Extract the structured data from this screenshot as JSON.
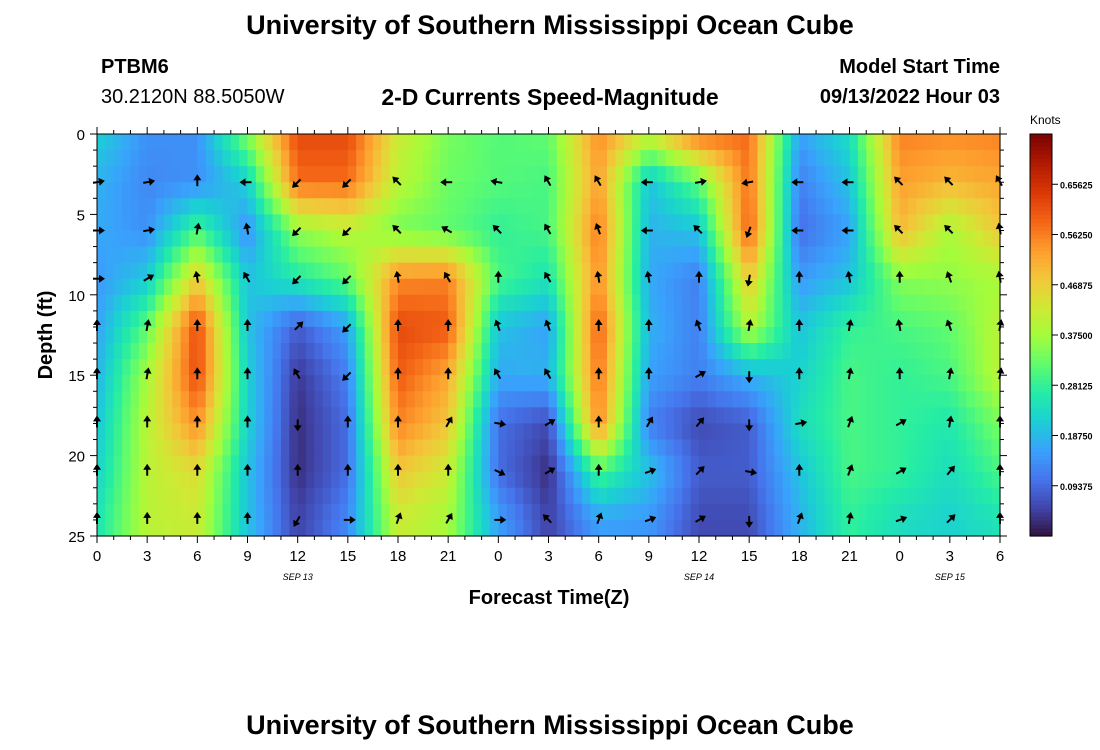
{
  "header": {
    "title": "University of Southern Mississippi Ocean Cube",
    "station_id": "PTBM6",
    "station_coords": "30.2120N  88.5050W",
    "model_start_label": "Model Start Time",
    "model_start_value": "09/13/2022 Hour 03"
  },
  "footer": {
    "title": "University of Southern Mississippi Ocean Cube"
  },
  "chart_data": {
    "type": "heatmap",
    "title": "2-D Currents Speed-Magnitude",
    "xlabel": "Forecast Time(Z)",
    "ylabel": "Depth (ft)",
    "x_range": [
      0,
      54
    ],
    "y_range": [
      0,
      25
    ],
    "y_inverted": true,
    "x_ticks": [
      0,
      3,
      6,
      9,
      12,
      15,
      18,
      21,
      24,
      27,
      30,
      33,
      36,
      39,
      42,
      45,
      48,
      51,
      54
    ],
    "x_tick_labels": [
      "0",
      "3",
      "6",
      "9",
      "12",
      "15",
      "18",
      "21",
      "0",
      "3",
      "6",
      "9",
      "12",
      "15",
      "18",
      "21",
      "0",
      "3",
      "6"
    ],
    "y_ticks": [
      0,
      5,
      10,
      15,
      20,
      25
    ],
    "y_tick_labels": [
      "0",
      "5",
      "10",
      "15",
      "20",
      "25"
    ],
    "date_labels": [
      {
        "x": 12,
        "label": "SEP 13"
      },
      {
        "x": 36,
        "label": "SEP 14"
      },
      {
        "x": 51,
        "label": "SEP 15"
      }
    ],
    "colorbar": {
      "unit": "Knots",
      "min": 0,
      "max": 0.75,
      "ticks": [
        0.09375,
        0.1875,
        0.28125,
        0.375,
        0.46875,
        0.5625,
        0.65625
      ],
      "tick_labels": [
        "0.09375",
        "0.18750",
        "0.28125",
        "0.37500",
        "0.46875",
        "0.56250",
        "0.65625"
      ],
      "colors": [
        "#30123b",
        "#4145ab",
        "#4675ed",
        "#39a2fc",
        "#1bcfd4",
        "#24eca6",
        "#61fc6c",
        "#a4fc3b",
        "#d1e834",
        "#f3c63a",
        "#fe9b2d",
        "#f36315",
        "#d93806",
        "#b11901",
        "#7a0402"
      ]
    },
    "speed_grid": {
      "times": [
        0,
        3,
        6,
        9,
        12,
        15,
        18,
        21,
        24,
        27,
        30,
        33,
        36,
        39,
        42,
        45,
        48,
        51,
        54
      ],
      "depths": [
        0,
        3,
        6,
        9,
        12,
        15,
        18,
        21,
        24
      ],
      "values": [
        [
          0.22,
          0.14,
          0.14,
          0.35,
          0.62,
          0.62,
          0.42,
          0.34,
          0.31,
          0.32,
          0.55,
          0.42,
          0.58,
          0.58,
          0.16,
          0.24,
          0.56,
          0.55,
          0.56
        ],
        [
          0.18,
          0.13,
          0.14,
          0.22,
          0.58,
          0.58,
          0.4,
          0.33,
          0.31,
          0.3,
          0.53,
          0.2,
          0.32,
          0.58,
          0.12,
          0.2,
          0.53,
          0.5,
          0.52
        ],
        [
          0.17,
          0.14,
          0.3,
          0.14,
          0.36,
          0.4,
          0.34,
          0.32,
          0.28,
          0.3,
          0.57,
          0.18,
          0.2,
          0.6,
          0.1,
          0.16,
          0.5,
          0.38,
          0.48
        ],
        [
          0.15,
          0.21,
          0.47,
          0.2,
          0.26,
          0.32,
          0.55,
          0.56,
          0.3,
          0.25,
          0.55,
          0.17,
          0.12,
          0.48,
          0.15,
          0.2,
          0.35,
          0.36,
          0.38
        ],
        [
          0.16,
          0.32,
          0.62,
          0.2,
          0.08,
          0.16,
          0.62,
          0.6,
          0.2,
          0.16,
          0.6,
          0.18,
          0.12,
          0.4,
          0.2,
          0.28,
          0.3,
          0.32,
          0.4
        ],
        [
          0.18,
          0.38,
          0.62,
          0.22,
          0.04,
          0.12,
          0.6,
          0.52,
          0.17,
          0.18,
          0.58,
          0.16,
          0.12,
          0.18,
          0.22,
          0.3,
          0.28,
          0.3,
          0.4
        ],
        [
          0.2,
          0.4,
          0.55,
          0.22,
          0.03,
          0.1,
          0.56,
          0.48,
          0.1,
          0.06,
          0.56,
          0.12,
          0.06,
          0.08,
          0.24,
          0.3,
          0.28,
          0.26,
          0.34
        ],
        [
          0.22,
          0.4,
          0.45,
          0.2,
          0.03,
          0.1,
          0.48,
          0.42,
          0.1,
          0.03,
          0.3,
          0.2,
          0.08,
          0.08,
          0.2,
          0.3,
          0.28,
          0.24,
          0.3
        ],
        [
          0.25,
          0.4,
          0.42,
          0.2,
          0.05,
          0.13,
          0.42,
          0.38,
          0.16,
          0.05,
          0.16,
          0.15,
          0.06,
          0.06,
          0.18,
          0.28,
          0.24,
          0.22,
          0.25
        ]
      ]
    },
    "vectors": {
      "times": [
        0,
        3,
        6,
        9,
        12,
        15,
        18,
        21,
        24,
        27,
        30,
        33,
        36,
        39,
        42,
        45,
        48,
        51,
        54
      ],
      "depths": [
        3,
        6,
        9,
        12,
        15,
        18,
        21,
        24
      ],
      "direction_deg": [
        [
          80,
          80,
          0,
          270,
          225,
          225,
          315,
          270,
          280,
          330,
          330,
          270,
          80,
          260,
          270,
          270,
          315,
          315,
          330
        ],
        [
          90,
          80,
          10,
          350,
          225,
          225,
          315,
          300,
          315,
          330,
          340,
          270,
          315,
          200,
          270,
          270,
          315,
          315,
          350
        ],
        [
          90,
          60,
          350,
          330,
          225,
          225,
          350,
          330,
          0,
          330,
          350,
          350,
          0,
          190,
          0,
          350,
          0,
          340,
          350
        ],
        [
          0,
          10,
          0,
          0,
          45,
          225,
          0,
          0,
          340,
          340,
          0,
          0,
          340,
          10,
          0,
          10,
          350,
          340,
          10
        ],
        [
          0,
          10,
          0,
          0,
          330,
          225,
          0,
          0,
          330,
          330,
          0,
          0,
          60,
          180,
          0,
          10,
          0,
          10,
          10
        ],
        [
          0,
          0,
          0,
          0,
          180,
          0,
          0,
          30,
          100,
          60,
          0,
          30,
          40,
          180,
          80,
          20,
          60,
          10,
          0
        ],
        [
          0,
          0,
          0,
          0,
          0,
          0,
          0,
          0,
          115,
          60,
          0,
          70,
          45,
          100,
          0,
          20,
          60,
          40,
          0
        ],
        [
          0,
          0,
          0,
          0,
          210,
          90,
          20,
          30,
          90,
          315,
          20,
          70,
          60,
          180,
          20,
          10,
          70,
          45,
          0
        ]
      ]
    }
  }
}
